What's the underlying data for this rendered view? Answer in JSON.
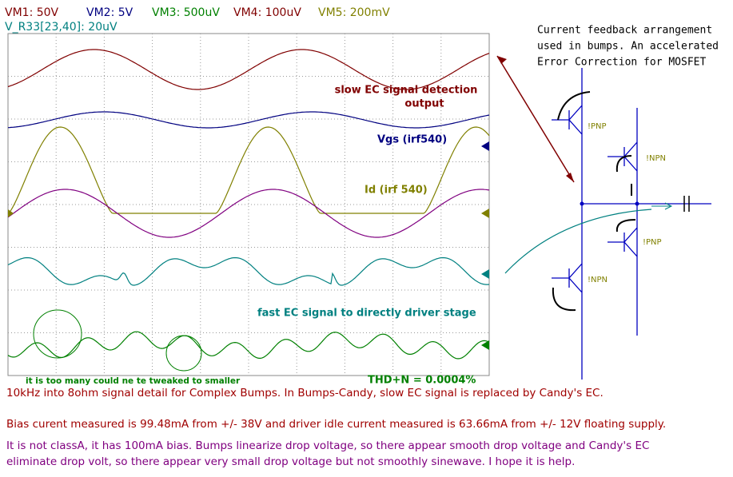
{
  "header": {
    "channels": [
      "VM1: 50V",
      "VM2: 5V",
      "VM3: 500uV",
      "VM4: 100uV",
      "VM5: 200mV"
    ],
    "channel_extra": "V_R33[23,40]: 20uV"
  },
  "scope": {
    "annotations": [
      "slow EC signal detection",
      "output",
      "Vgs (irf540)",
      "Id (irf 540)",
      "fast EC signal to directly driver stage",
      "it is too many could ne te tweaked to smaller",
      "THD+N = 0.0004%"
    ]
  },
  "schematic": {
    "title": [
      "Current feedback arrangement",
      "used in bumps. An accelerated",
      "Error Correction for MOSFET"
    ],
    "transistors": [
      "!PNP",
      "!NPN",
      "!PNP",
      "!NPN"
    ]
  },
  "caption": {
    "lines": [
      "10kHz into 8ohm signal detail for Complex Bumps. In Bumps-Candy, slow EC signal is replaced by Candy's EC.",
      "Bias curent measured is 99.48mA from +/- 38V and driver idle current measured is 63.66mA from +/- 12V floating supply.",
      "It is not classA, it has 100mA bias. Bumps linearize drop voltage, so there appear smooth drop voltage and Candy's EC",
      "eliminate drop volt, so there appear very small drop voltage but not smoothly sinewave. I hope it is help."
    ]
  }
}
